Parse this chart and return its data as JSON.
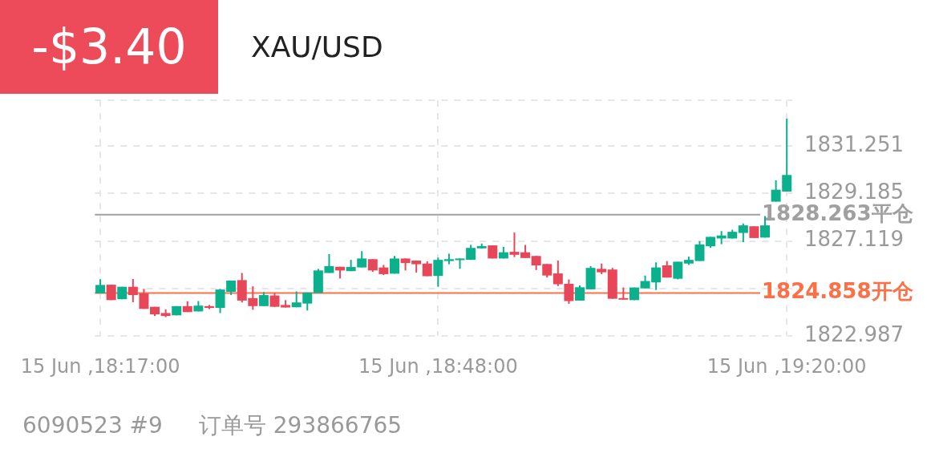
{
  "chart_data": {
    "type": "candlestick",
    "title": "XAU/USD",
    "subtitle": "-$3.40",
    "categories": [
      "15 Jun ,18:17:00",
      null,
      null,
      null,
      null,
      null,
      null,
      null,
      null,
      null,
      null,
      null,
      null,
      null,
      null,
      null,
      null,
      null,
      null,
      null,
      null,
      null,
      null,
      null,
      null,
      null,
      null,
      null,
      null,
      null,
      null,
      "15 Jun ,18:48:00",
      null,
      null,
      null,
      null,
      null,
      null,
      null,
      null,
      null,
      null,
      null,
      null,
      null,
      null,
      null,
      null,
      null,
      null,
      null,
      null,
      null,
      null,
      null,
      null,
      null,
      null,
      null,
      null,
      null,
      null,
      null,
      "15 Jun ,19:20:00"
    ],
    "ohlc": [
      [
        1824.84,
        1825.46,
        1824.84,
        1825.21
      ],
      [
        1825.22,
        1825.22,
        1824.55,
        1824.55
      ],
      [
        1824.59,
        1825.13,
        1824.59,
        1825.13
      ],
      [
        1825.13,
        1825.47,
        1824.46,
        1824.77
      ],
      [
        1824.84,
        1825.04,
        1824.17,
        1824.17
      ],
      [
        1824.26,
        1824.26,
        1823.86,
        1823.93
      ],
      [
        1823.99,
        1824.15,
        1823.81,
        1823.86
      ],
      [
        1823.89,
        1824.29,
        1823.89,
        1824.29
      ],
      [
        1824.29,
        1824.5,
        1824.03,
        1824.03
      ],
      [
        1824.06,
        1824.51,
        1824.06,
        1824.31
      ],
      [
        1824.29,
        1824.34,
        1824.16,
        1824.21
      ],
      [
        1824.21,
        1825.04,
        1823.99,
        1825.01
      ],
      [
        1824.91,
        1825.4,
        1824.77,
        1825.4
      ],
      [
        1825.42,
        1825.73,
        1824.45,
        1824.53
      ],
      [
        1824.64,
        1825.15,
        1824.13,
        1824.29
      ],
      [
        1824.29,
        1824.9,
        1824.29,
        1824.77
      ],
      [
        1824.75,
        1824.86,
        1824.26,
        1824.26
      ],
      [
        1824.34,
        1824.55,
        1824.23,
        1824.23
      ],
      [
        1824.24,
        1824.93,
        1824.24,
        1824.45
      ],
      [
        1824.4,
        1824.88,
        1824.1,
        1824.88
      ],
      [
        1824.86,
        1825.91,
        1824.86,
        1825.84
      ],
      [
        1825.73,
        1826.55,
        1825.73,
        1826.03
      ],
      [
        1826.0,
        1826.0,
        1825.49,
        1825.84
      ],
      [
        1825.81,
        1826.3,
        1825.81,
        1825.99
      ],
      [
        1825.97,
        1826.68,
        1825.97,
        1826.36
      ],
      [
        1826.33,
        1826.33,
        1825.78,
        1825.84
      ],
      [
        1825.97,
        1826.08,
        1825.64,
        1825.68
      ],
      [
        1825.7,
        1826.47,
        1825.7,
        1826.36
      ],
      [
        1826.36,
        1826.36,
        1825.84,
        1826.16
      ],
      [
        1826.27,
        1826.27,
        1825.75,
        1826.11
      ],
      [
        1826.14,
        1826.24,
        1825.59,
        1825.59
      ],
      [
        1825.6,
        1826.4,
        1825.13,
        1826.3
      ],
      [
        1826.25,
        1826.57,
        1826.11,
        1826.33
      ],
      [
        1826.3,
        1826.36,
        1825.91,
        1826.36
      ],
      [
        1826.3,
        1826.95,
        1826.3,
        1826.82
      ],
      [
        1826.8,
        1827.01,
        1826.8,
        1826.9
      ],
      [
        1826.93,
        1826.93,
        1826.36,
        1826.36
      ],
      [
        1826.36,
        1826.87,
        1826.36,
        1826.63
      ],
      [
        1826.65,
        1827.49,
        1826.42,
        1826.52
      ],
      [
        1826.63,
        1826.95,
        1826.38,
        1826.38
      ],
      [
        1826.47,
        1826.47,
        1825.86,
        1826.06
      ],
      [
        1826.12,
        1826.12,
        1825.53,
        1825.62
      ],
      [
        1825.71,
        1826.27,
        1825.16,
        1825.24
      ],
      [
        1825.26,
        1825.45,
        1824.39,
        1824.51
      ],
      [
        1824.53,
        1825.19,
        1824.53,
        1825.11
      ],
      [
        1825.02,
        1826.03,
        1825.02,
        1825.95
      ],
      [
        1825.91,
        1826.14,
        1825.68,
        1825.76
      ],
      [
        1825.88,
        1825.95,
        1824.61,
        1824.61
      ],
      [
        1824.64,
        1825.1,
        1824.57,
        1824.57
      ],
      [
        1824.55,
        1825.1,
        1824.55,
        1825.1
      ],
      [
        1825.06,
        1825.62,
        1825.06,
        1825.38
      ],
      [
        1825.32,
        1826.19,
        1824.99,
        1825.97
      ],
      [
        1826.06,
        1826.25,
        1825.53,
        1825.53
      ],
      [
        1825.48,
        1826.22,
        1825.45,
        1826.22
      ],
      [
        1826.14,
        1826.44,
        1826.08,
        1826.3
      ],
      [
        1826.25,
        1827.11,
        1826.25,
        1826.97
      ],
      [
        1826.89,
        1827.3,
        1826.82,
        1827.3
      ],
      [
        1827.23,
        1827.55,
        1826.98,
        1827.36
      ],
      [
        1827.23,
        1827.61,
        1827.23,
        1827.52
      ],
      [
        1827.47,
        1827.88,
        1827.07,
        1827.8
      ],
      [
        1827.76,
        1827.76,
        1827.25,
        1827.25
      ],
      [
        1827.27,
        1828.2,
        1827.27,
        1827.8
      ],
      [
        1828.83,
        1829.76,
        1828.83,
        1829.35
      ],
      [
        1829.27,
        1832.44,
        1829.27,
        1829.99
      ]
    ],
    "colors": [
      "#0bb18c",
      "#e8475a",
      "#0bb18c",
      "#e8475a",
      "#e8475a",
      "#e8475a",
      "#e8475a",
      "#0bb18c",
      "#e8475a",
      "#0bb18c",
      "#e8475a",
      "#0bb18c",
      "#0bb18c",
      "#e8475a",
      "#e8475a",
      "#0bb18c",
      "#e8475a",
      "#e8475a",
      "#0bb18c",
      "#0bb18c",
      "#0bb18c",
      "#0bb18c",
      "#e8475a",
      "#0bb18c",
      "#0bb18c",
      "#e8475a",
      "#e8475a",
      "#0bb18c",
      "#e8475a",
      "#e8475a",
      "#e8475a",
      "#0bb18c",
      "#0bb18c",
      "#0bb18c",
      "#0bb18c",
      "#0bb18c",
      "#e8475a",
      "#0bb18c",
      "#e8475a",
      "#e8475a",
      "#e8475a",
      "#e8475a",
      "#e8475a",
      "#e8475a",
      "#0bb18c",
      "#0bb18c",
      "#e8475a",
      "#e8475a",
      "#e8475a",
      "#0bb18c",
      "#0bb18c",
      "#0bb18c",
      "#e8475a",
      "#0bb18c",
      "#0bb18c",
      "#0bb18c",
      "#0bb18c",
      "#0bb18c",
      "#0bb18c",
      "#0bb18c",
      "#e8475a",
      "#0bb18c",
      "#0bb18c",
      "#0bb18c"
    ],
    "ylim": [
      1822.987,
      1833.24
    ],
    "yticks": [
      1822.987,
      {
        "value": 1825.053,
        "label": null
      },
      1827.119,
      1829.185,
      1831.251
    ],
    "grid": true,
    "ref_lines": [
      {
        "axis": "y",
        "value": 1828.263,
        "label": "1828.263平仓",
        "color": "#a0a0a0"
      },
      {
        "axis": "y",
        "value": 1824.858,
        "label": "1824.858开仓",
        "color": "#fb7046"
      }
    ],
    "annotations": [
      "6090523 #9",
      "订单号 293866765"
    ]
  }
}
